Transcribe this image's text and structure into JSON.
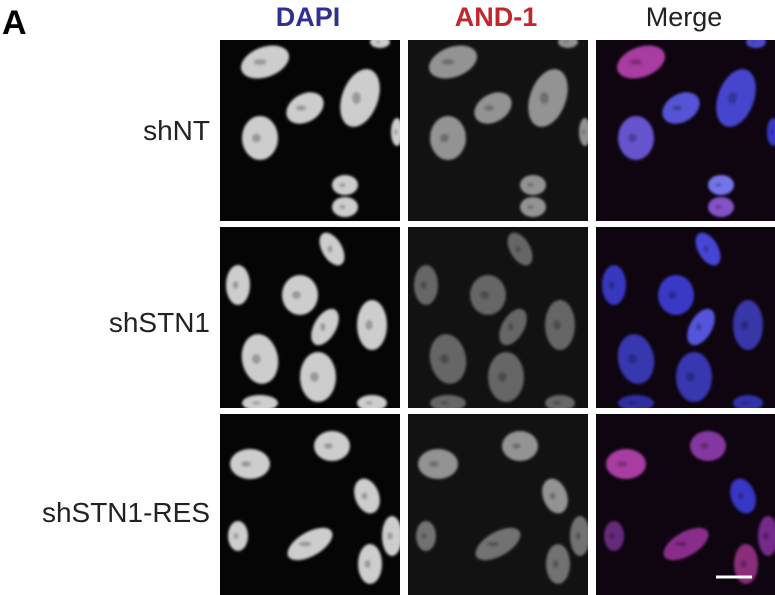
{
  "panel_label": "A",
  "columns": [
    "DAPI",
    "AND-1",
    "Merge"
  ],
  "rows": [
    "shNT",
    "shSTN1",
    "shSTN1-RES"
  ]
}
